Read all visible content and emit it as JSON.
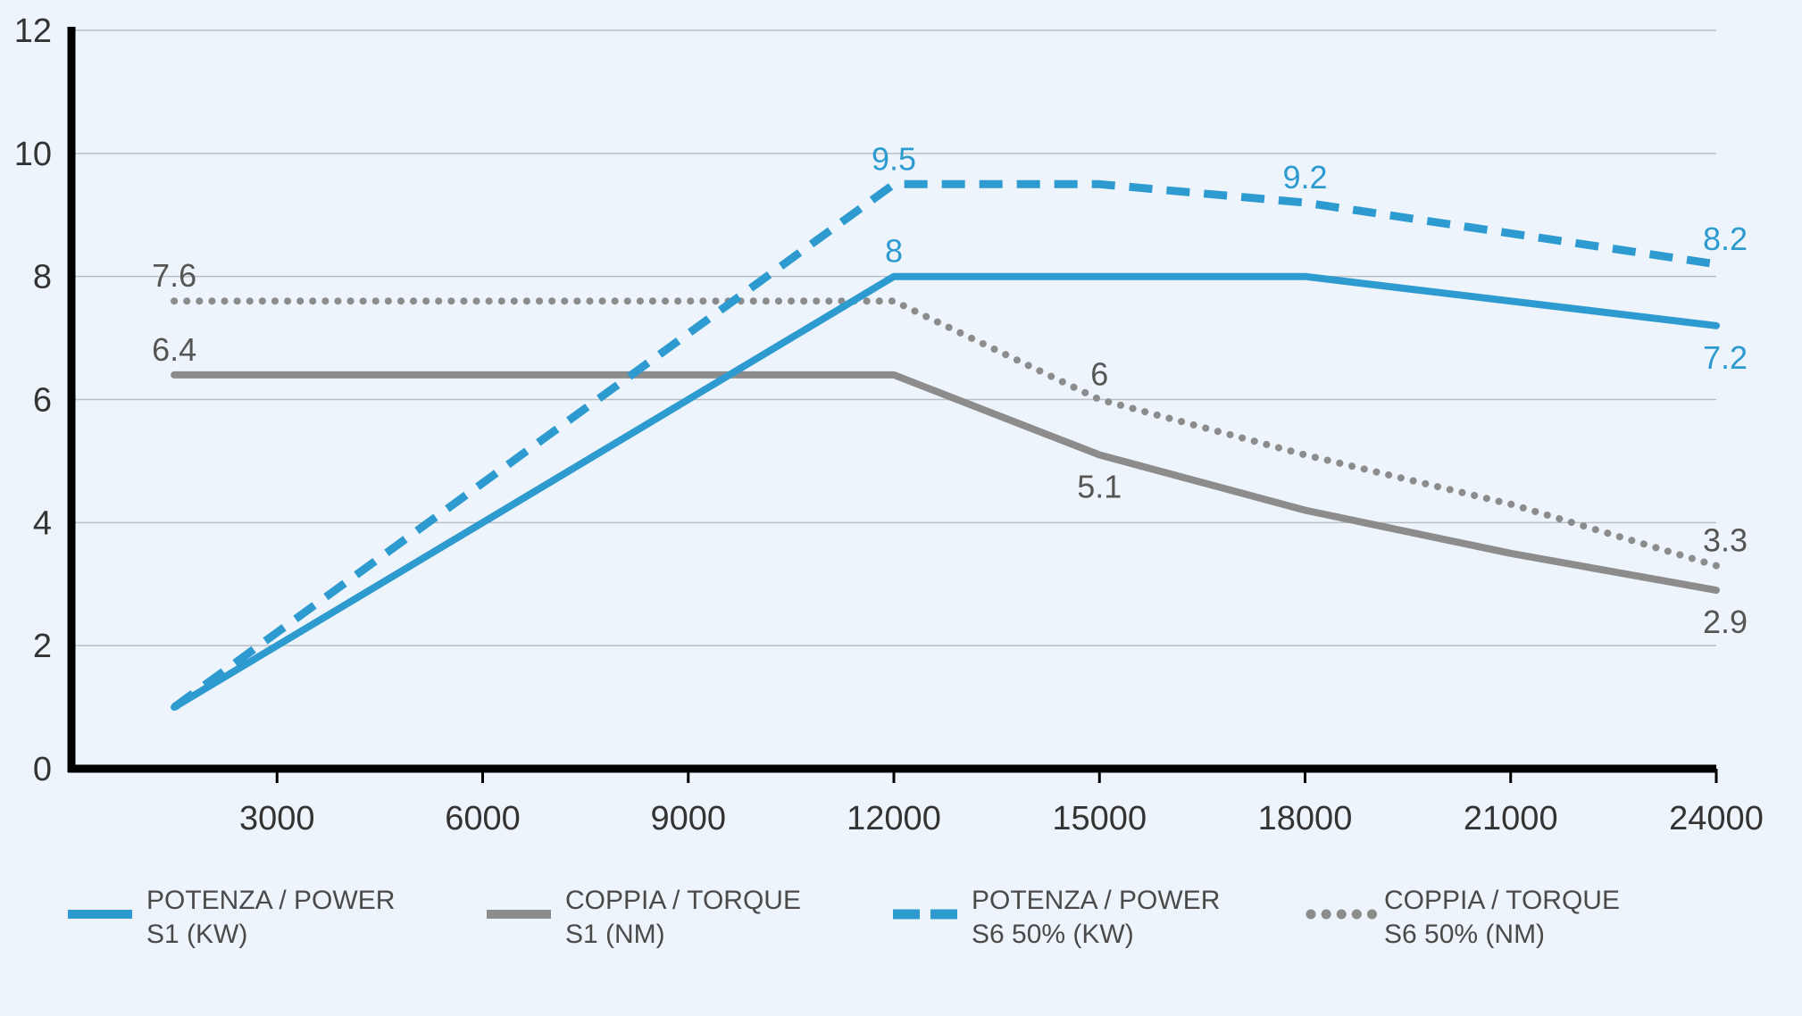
{
  "chart_data": {
    "type": "line",
    "title": "",
    "xlabel": "",
    "ylabel": "",
    "x_ticks": [
      3000,
      6000,
      9000,
      12000,
      15000,
      18000,
      21000,
      24000
    ],
    "y_ticks": [
      0,
      2,
      4,
      6,
      8,
      10,
      12
    ],
    "xlim": [
      0,
      24000
    ],
    "ylim": [
      0,
      12
    ],
    "grid": "horizontal",
    "legend_position": "bottom",
    "series": [
      {
        "key": "power_s1",
        "name_line1": "POTENZA / POWER",
        "name_line2": "S1 (KW)",
        "style": "solid",
        "color": "#2e9bd0",
        "x": [
          1500,
          12000,
          18000,
          24000
        ],
        "y": [
          1.0,
          8.0,
          8.0,
          7.2
        ],
        "labels": [
          {
            "x": 12000,
            "y": 8.0,
            "text": "8",
            "pos": "above"
          },
          {
            "x": 24000,
            "y": 7.2,
            "text": "7.2",
            "pos": "below"
          }
        ]
      },
      {
        "key": "torque_s1",
        "name_line1": "COPPIA / TORQUE",
        "name_line2": "S1 (NM)",
        "style": "solid",
        "color": "#8c8c8c",
        "x": [
          1500,
          12000,
          15000,
          18000,
          21000,
          24000
        ],
        "y": [
          6.4,
          6.4,
          5.1,
          4.2,
          3.5,
          2.9
        ],
        "labels": [
          {
            "x": 1500,
            "y": 6.4,
            "text": "6.4",
            "pos": "above"
          },
          {
            "x": 15000,
            "y": 5.1,
            "text": "5.1",
            "pos": "below"
          },
          {
            "x": 24000,
            "y": 2.9,
            "text": "2.9",
            "pos": "below"
          }
        ]
      },
      {
        "key": "power_s6",
        "name_line1": "POTENZA / POWER",
        "name_line2": "S6 50% (KW)",
        "style": "dashed",
        "color": "#2e9bd0",
        "x": [
          1500,
          12000,
          15000,
          18000,
          21000,
          24000
        ],
        "y": [
          1.0,
          9.5,
          9.5,
          9.2,
          8.7,
          8.2
        ],
        "labels": [
          {
            "x": 12000,
            "y": 9.5,
            "text": "9.5",
            "pos": "above"
          },
          {
            "x": 18000,
            "y": 9.2,
            "text": "9.2",
            "pos": "above"
          },
          {
            "x": 24000,
            "y": 8.2,
            "text": "8.2",
            "pos": "above"
          }
        ]
      },
      {
        "key": "torque_s6",
        "name_line1": "COPPIA / TORQUE",
        "name_line2": "S6 50% (NM)",
        "style": "dotted",
        "color": "#8c8c8c",
        "x": [
          1500,
          12000,
          15000,
          18000,
          21000,
          24000
        ],
        "y": [
          7.6,
          7.6,
          6.0,
          5.1,
          4.3,
          3.3
        ],
        "labels": [
          {
            "x": 1500,
            "y": 7.6,
            "text": "7.6",
            "pos": "above"
          },
          {
            "x": 15000,
            "y": 6.0,
            "text": "6",
            "pos": "above"
          },
          {
            "x": 24000,
            "y": 3.3,
            "text": "3.3",
            "pos": "above"
          }
        ]
      }
    ]
  }
}
